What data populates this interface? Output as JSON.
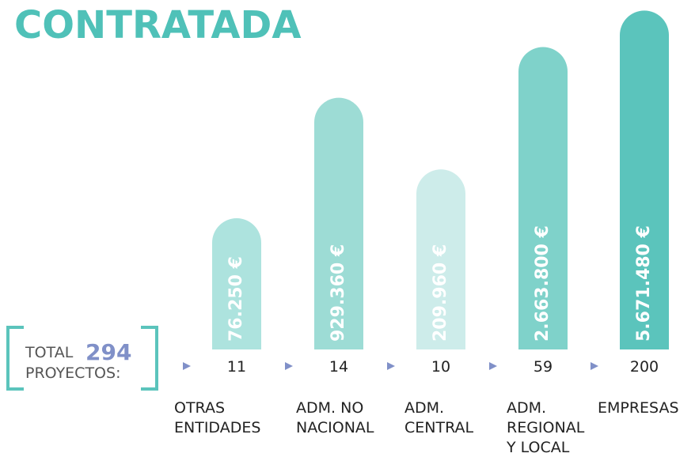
{
  "chart_data": {
    "type": "bar",
    "title": "CONTRATADA",
    "total": {
      "prefix": "TOTAL",
      "value": 294,
      "suffix": "PROYECTOS:"
    },
    "categories": [
      "OTRAS\nENTIDADES",
      "ADM. NO\nNACIONAL",
      "ADM.\nCENTRAL",
      "ADM.\nREGIONAL\nY LOCAL",
      "EMPRESAS"
    ],
    "values": [
      76250,
      929360,
      209960,
      2663800,
      5671480
    ],
    "value_labels": [
      "76.250 €",
      "929.360 €",
      "209.960 €",
      "2.663.800 €",
      "5.671.480 €"
    ],
    "counts": [
      11,
      14,
      10,
      59,
      200
    ],
    "colors": [
      "#ade3de",
      "#9ddcd5",
      "#cdecea",
      "#7fd2ca",
      "#5bc4bc"
    ],
    "ylim": [
      5000,
      6000000
    ],
    "log_scale": true
  }
}
